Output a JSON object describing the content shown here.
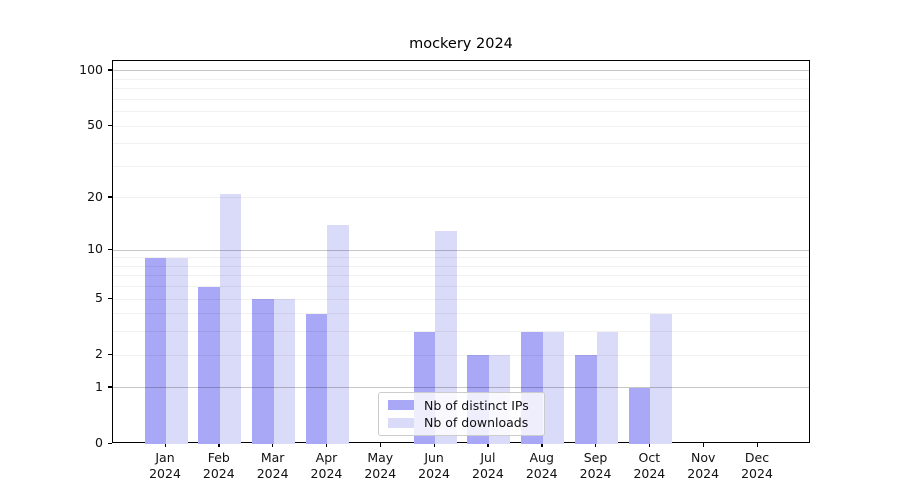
{
  "figure": {
    "background": "#ffffff"
  },
  "chart_data": {
    "type": "bar",
    "title": "mockery 2024",
    "categories": [
      "Jan 2024",
      "Feb 2024",
      "Mar 2024",
      "Apr 2024",
      "May 2024",
      "Jun 2024",
      "Jul 2024",
      "Aug 2024",
      "Sep 2024",
      "Oct 2024",
      "Nov 2024",
      "Dec 2024"
    ],
    "x_months": [
      "Jan",
      "Feb",
      "Mar",
      "Apr",
      "May",
      "Jun",
      "Jul",
      "Aug",
      "Sep",
      "Oct",
      "Nov",
      "Dec"
    ],
    "x_year": "2024",
    "series": [
      {
        "name": "Nb of distinct IPs",
        "color": "#a8a8f6",
        "values": [
          9,
          6,
          5,
          4,
          0,
          3,
          2,
          3,
          2,
          1,
          0,
          0
        ]
      },
      {
        "name": "Nb of downloads",
        "color": "#dadaf9",
        "values": [
          9,
          21,
          5,
          14,
          0,
          13,
          2,
          3,
          3,
          4,
          0,
          0
        ]
      }
    ],
    "xlabel": "",
    "ylabel": "",
    "y_axis": {
      "scale": "log1p",
      "ylim": [
        0,
        113
      ],
      "ticks": [
        0,
        1,
        2,
        5,
        10,
        20,
        50,
        100
      ],
      "major_gridlines": [
        1,
        10,
        100
      ],
      "minor_gridlines": [
        2,
        3,
        4,
        5,
        6,
        7,
        8,
        9,
        20,
        30,
        40,
        50,
        60,
        70,
        80,
        90
      ]
    },
    "grid": true,
    "legend_position": "lower center"
  },
  "colors": {
    "spine": "#000000",
    "tick_text": "#111111",
    "major_grid": "rgba(0,0,0,0.22)",
    "minor_grid": "rgba(0,0,0,0.055)",
    "legend_border": "#cccccc",
    "legend_background": "rgba(255,255,255,0.8)"
  }
}
